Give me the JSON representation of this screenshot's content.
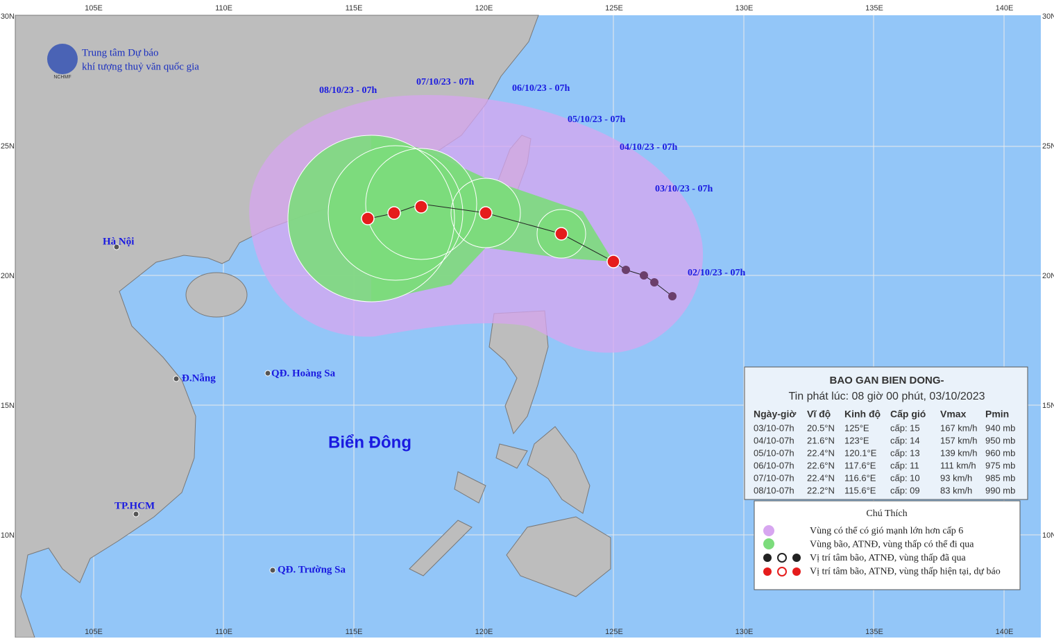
{
  "header": {
    "line1": "Trung tâm Dự báo",
    "line2": "khí tượng thuỷ văn quốc gia",
    "logo": "NCHMF"
  },
  "lon_labels": [
    "105E",
    "110E",
    "115E",
    "120E",
    "125E",
    "130E",
    "135E",
    "140E"
  ],
  "lat_labels": [
    "30N",
    "25N",
    "20N",
    "15N",
    "10N"
  ],
  "track_labels": [
    "08/10/23 - 07h",
    "07/10/23 - 07h",
    "06/10/23 - 07h",
    "05/10/23 - 07h",
    "04/10/23 - 07h",
    "03/10/23 - 07h",
    "02/10/23 - 07h"
  ],
  "places": [
    "Hà Nội",
    "Đ.Nẵng",
    "QĐ. Hoàng Sa",
    "TP.HCM",
    "QĐ. Trường Sa"
  ],
  "sea_label": "Biển Đông",
  "bulletin": {
    "title": "BAO GAN BIEN DONG-",
    "issued": "Tin phát lúc: 08 giờ 00 phút, 03/10/2023",
    "columns": [
      "Ngày-giờ",
      "Vĩ độ",
      "Kinh độ",
      "Cấp gió",
      "Vmax",
      "Pmin"
    ],
    "rows": [
      [
        "03/10-07h",
        "20.5°N",
        "125°E",
        "cấp: 15",
        "167 km/h",
        "940 mb"
      ],
      [
        "04/10-07h",
        "21.6°N",
        "123°E",
        "cấp: 14",
        "157 km/h",
        "950 mb"
      ],
      [
        "05/10-07h",
        "22.4°N",
        "120.1°E",
        "cấp: 13",
        "139 km/h",
        "960 mb"
      ],
      [
        "06/10-07h",
        "22.6°N",
        "117.6°E",
        "cấp: 11",
        "111 km/h",
        "975 mb"
      ],
      [
        "07/10-07h",
        "22.4°N",
        "116.6°E",
        "cấp: 10",
        "93 km/h",
        "985 mb"
      ],
      [
        "08/10-07h",
        "22.2°N",
        "115.6°E",
        "cấp: 09",
        "83 km/h",
        "990 mb"
      ]
    ]
  },
  "legend": {
    "title": "Chú Thích",
    "items": [
      "Vùng có thể có gió mạnh lớn hơn cấp 6",
      "Vùng bão, ATNĐ, vùng thấp có thể đi qua",
      "Vị trí tâm bão, ATNĐ, vùng thấp đã qua",
      "Vị trí tâm bão, ATNĐ, vùng thấp hiện tại, dự báo"
    ]
  }
}
